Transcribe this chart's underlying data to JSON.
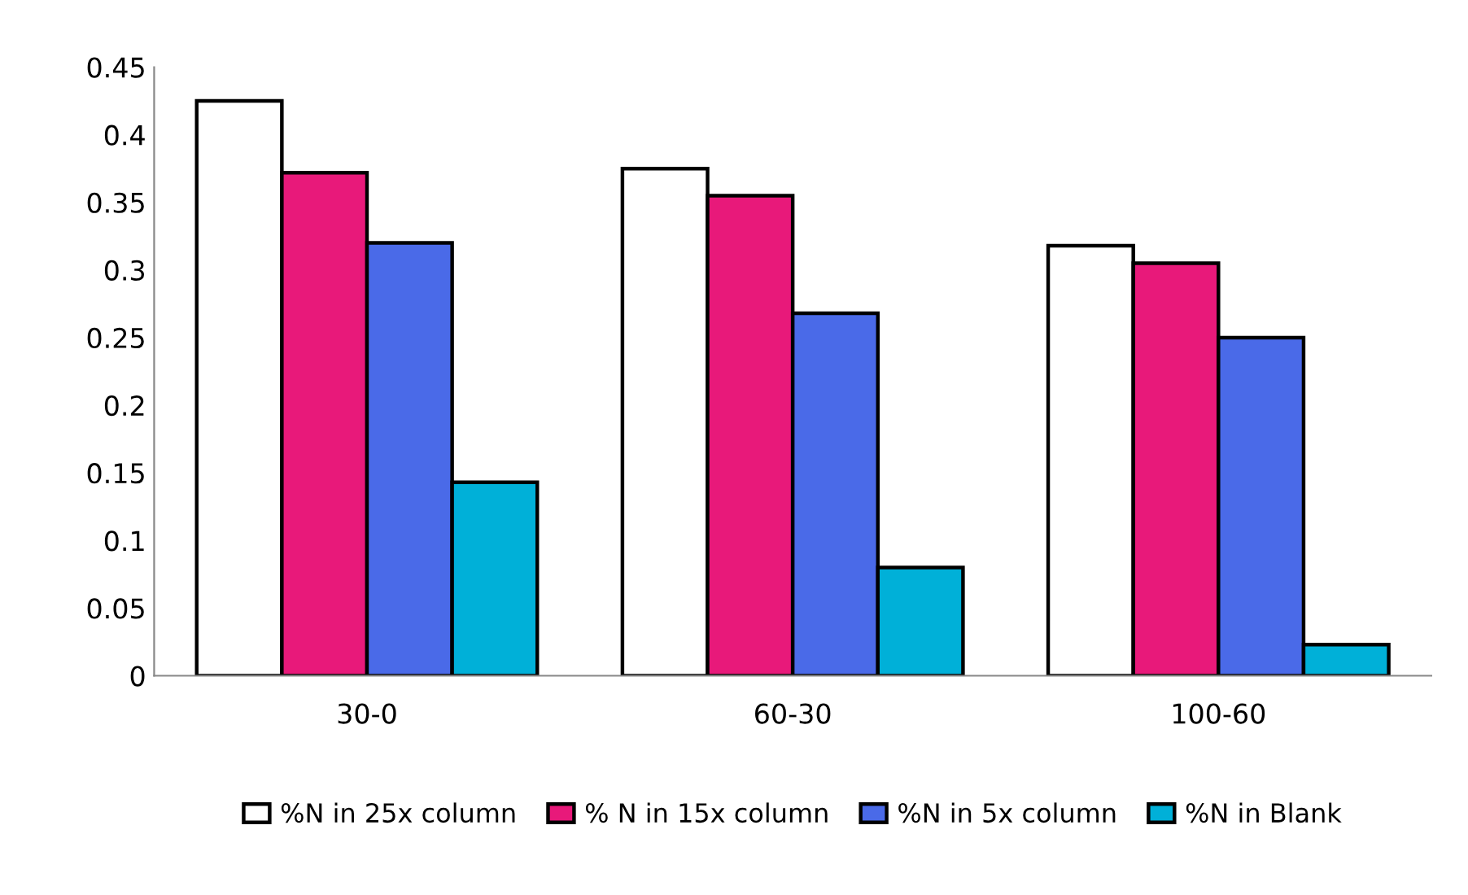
{
  "chart_data": {
    "type": "bar",
    "categories": [
      "30-0",
      "60-30",
      "100-60"
    ],
    "series": [
      {
        "name": "%N in 25x column",
        "color": "#ffffff",
        "values": [
          0.425,
          0.375,
          0.318
        ]
      },
      {
        "name": "% N in 15x column",
        "color": "#e8197a",
        "values": [
          0.372,
          0.355,
          0.305
        ]
      },
      {
        "name": "%N in 5x column",
        "color": "#4a6ae8",
        "values": [
          0.32,
          0.268,
          0.25
        ]
      },
      {
        "name": "%N in Blank",
        "color": "#00b0d8",
        "values": [
          0.143,
          0.08,
          0.023
        ]
      }
    ],
    "ylim": [
      0,
      0.45
    ],
    "yticks": [
      0,
      0.05,
      0.1,
      0.15,
      0.2,
      0.25,
      0.3,
      0.35,
      0.4,
      0.45
    ],
    "grid": false,
    "legend": "bottom"
  }
}
